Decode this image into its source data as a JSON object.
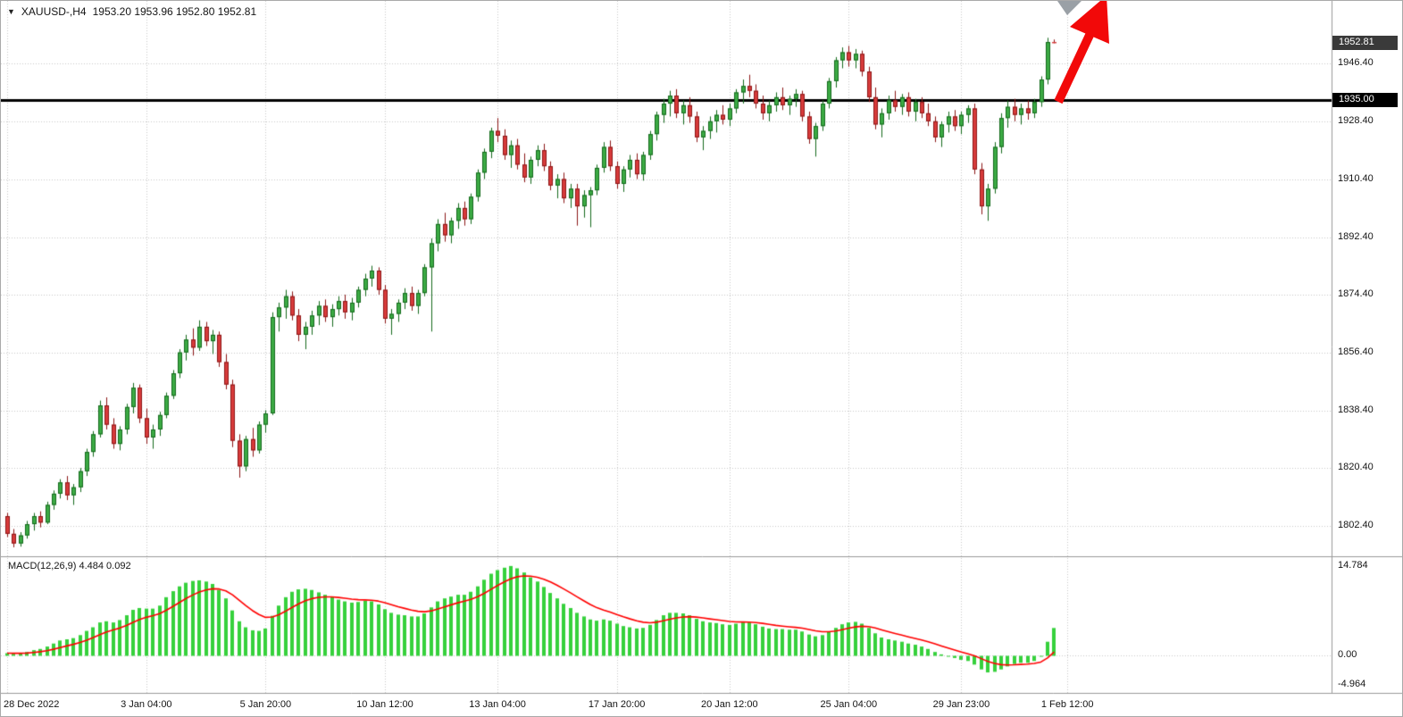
{
  "colors": {
    "background": "#ffffff",
    "grid": "#c8c8c8",
    "separator": "#9a9a9a",
    "axis_text": "#141414",
    "up_fill": "#3cab44",
    "up_stroke": "#156a1d",
    "down_fill": "#d83b3b",
    "down_stroke": "#8c1616",
    "macd_hist": "#36d13c",
    "macd_signal": "#ff0000",
    "hline": "#000000",
    "badge_current_bg": "#3a3a3a",
    "badge_line_bg": "#000000",
    "arrow": "#f20909",
    "marker_gray": "#9aa0a6"
  },
  "header": {
    "dropdown_icon": "▼",
    "symbol": "XAUUSD-,H4",
    "ohlc": "1953.20 1953.96 1952.80 1952.81"
  },
  "price_axis": {
    "current_price": "1952.81",
    "line_price": "1935.00",
    "labels": [
      "1946.40",
      "1928.40",
      "1910.40",
      "1892.40",
      "1874.40",
      "1856.40",
      "1838.40",
      "1820.40",
      "1802.40"
    ]
  },
  "macd": {
    "label": "MACD(12,26,9) 4.484 0.092",
    "axis_labels": [
      "14.784",
      "0.00",
      "-4.964"
    ]
  },
  "chart_data": {
    "type": "candlestick",
    "symbol_timeframe": "XAUUSD- H4",
    "price_range": {
      "top": 1966.0,
      "bottom": 1793.0
    },
    "hline": 1935.0,
    "time_ticks": [
      {
        "index": 0,
        "label": "28 Dec 2022"
      },
      {
        "index": 21,
        "label": "3 Jan 04:00"
      },
      {
        "index": 39,
        "label": "5 Jan 20:00"
      },
      {
        "index": 57,
        "label": "10 Jan 12:00"
      },
      {
        "index": 74,
        "label": "13 Jan 04:00"
      },
      {
        "index": 92,
        "label": "17 Jan 20:00"
      },
      {
        "index": 109,
        "label": "20 Jan 12:00"
      },
      {
        "index": 127,
        "label": "25 Jan 04:00"
      },
      {
        "index": 144,
        "label": "29 Jan 23:00"
      },
      {
        "index": 160,
        "label": "1 Feb 12:00"
      }
    ],
    "candles": [
      [
        1805.5,
        1806.5,
        1799.0,
        1800.0
      ],
      [
        1800.0,
        1801.5,
        1795.8,
        1797.0
      ],
      [
        1797.0,
        1800.5,
        1796.0,
        1799.5
      ],
      [
        1799.5,
        1804.0,
        1798.5,
        1803.0
      ],
      [
        1803.0,
        1806.5,
        1801.0,
        1805.5
      ],
      [
        1805.5,
        1807.0,
        1802.0,
        1803.5
      ],
      [
        1803.5,
        1810.0,
        1803.0,
        1809.0
      ],
      [
        1809.0,
        1813.5,
        1807.5,
        1812.5
      ],
      [
        1812.5,
        1817.0,
        1811.0,
        1816.0
      ],
      [
        1816.0,
        1818.0,
        1810.5,
        1812.0
      ],
      [
        1812.0,
        1815.5,
        1809.0,
        1814.5
      ],
      [
        1814.5,
        1820.5,
        1813.0,
        1819.5
      ],
      [
        1819.5,
        1826.5,
        1818.0,
        1825.5
      ],
      [
        1825.5,
        1832.0,
        1824.0,
        1831.0
      ],
      [
        1831.0,
        1841.5,
        1830.0,
        1840.0
      ],
      [
        1840.0,
        1842.5,
        1832.5,
        1834.0
      ],
      [
        1834.0,
        1836.0,
        1826.5,
        1828.0
      ],
      [
        1828.0,
        1833.5,
        1826.0,
        1832.5
      ],
      [
        1832.5,
        1840.5,
        1831.0,
        1839.5
      ],
      [
        1839.5,
        1847.0,
        1837.5,
        1845.5
      ],
      [
        1845.5,
        1846.5,
        1834.5,
        1836.0
      ],
      [
        1836.0,
        1839.0,
        1828.0,
        1830.0
      ],
      [
        1830.0,
        1834.0,
        1826.5,
        1832.5
      ],
      [
        1832.5,
        1838.0,
        1830.5,
        1837.0
      ],
      [
        1837.0,
        1844.0,
        1836.0,
        1843.0
      ],
      [
        1843.0,
        1851.0,
        1842.0,
        1850.0
      ],
      [
        1850.0,
        1857.5,
        1848.5,
        1856.5
      ],
      [
        1856.5,
        1862.0,
        1854.0,
        1860.5
      ],
      [
        1860.5,
        1864.0,
        1855.5,
        1858.0
      ],
      [
        1858.0,
        1866.5,
        1857.0,
        1864.5
      ],
      [
        1864.5,
        1866.0,
        1858.5,
        1860.0
      ],
      [
        1860.0,
        1863.5,
        1856.0,
        1862.0
      ],
      [
        1862.0,
        1863.0,
        1852.0,
        1853.5
      ],
      [
        1853.5,
        1856.0,
        1845.0,
        1846.5
      ],
      [
        1846.5,
        1848.0,
        1827.0,
        1829.0
      ],
      [
        1829.0,
        1831.0,
        1817.5,
        1821.0
      ],
      [
        1821.0,
        1830.5,
        1819.5,
        1829.5
      ],
      [
        1829.5,
        1833.0,
        1824.0,
        1826.0
      ],
      [
        1826.0,
        1835.0,
        1825.0,
        1834.0
      ],
      [
        1834.0,
        1838.5,
        1831.5,
        1837.5
      ],
      [
        1837.5,
        1869.0,
        1837.0,
        1867.5
      ],
      [
        1867.5,
        1872.0,
        1863.0,
        1870.5
      ],
      [
        1870.5,
        1876.0,
        1867.0,
        1874.0
      ],
      [
        1874.0,
        1875.5,
        1866.5,
        1868.0
      ],
      [
        1868.0,
        1870.0,
        1860.0,
        1862.0
      ],
      [
        1862.0,
        1866.0,
        1857.5,
        1864.5
      ],
      [
        1864.5,
        1869.5,
        1862.0,
        1868.0
      ],
      [
        1868.0,
        1872.5,
        1865.0,
        1871.0
      ],
      [
        1871.0,
        1873.0,
        1866.0,
        1867.5
      ],
      [
        1867.5,
        1871.5,
        1864.5,
        1870.0
      ],
      [
        1870.0,
        1874.0,
        1868.0,
        1872.5
      ],
      [
        1872.5,
        1874.5,
        1867.0,
        1869.0
      ],
      [
        1869.0,
        1873.5,
        1866.5,
        1872.0
      ],
      [
        1872.0,
        1877.0,
        1870.5,
        1876.0
      ],
      [
        1876.0,
        1881.0,
        1874.0,
        1879.5
      ],
      [
        1879.5,
        1883.5,
        1877.0,
        1882.0
      ],
      [
        1882.0,
        1883.0,
        1874.5,
        1876.0
      ],
      [
        1876.0,
        1877.5,
        1865.5,
        1867.0
      ],
      [
        1867.0,
        1870.0,
        1862.0,
        1868.5
      ],
      [
        1868.5,
        1873.0,
        1866.0,
        1872.0
      ],
      [
        1872.0,
        1876.5,
        1870.0,
        1875.0
      ],
      [
        1875.0,
        1877.0,
        1869.5,
        1871.0
      ],
      [
        1871.0,
        1876.0,
        1868.5,
        1875.0
      ],
      [
        1875.0,
        1884.0,
        1874.0,
        1883.0
      ],
      [
        1883.0,
        1892.0,
        1863.0,
        1890.5
      ],
      [
        1890.5,
        1898.0,
        1888.0,
        1896.5
      ],
      [
        1896.5,
        1900.0,
        1891.0,
        1893.0
      ],
      [
        1893.0,
        1898.5,
        1890.5,
        1897.5
      ],
      [
        1897.5,
        1903.0,
        1895.0,
        1901.5
      ],
      [
        1901.5,
        1903.5,
        1896.0,
        1898.0
      ],
      [
        1898.0,
        1906.0,
        1896.5,
        1905.0
      ],
      [
        1905.0,
        1913.5,
        1903.5,
        1912.5
      ],
      [
        1912.5,
        1920.0,
        1910.5,
        1919.0
      ],
      [
        1919.0,
        1926.5,
        1917.0,
        1925.5
      ],
      [
        1925.5,
        1929.5,
        1922.0,
        1924.0
      ],
      [
        1924.0,
        1926.0,
        1916.5,
        1918.0
      ],
      [
        1918.0,
        1922.5,
        1914.0,
        1921.0
      ],
      [
        1921.0,
        1923.0,
        1913.5,
        1915.0
      ],
      [
        1915.0,
        1918.5,
        1909.5,
        1911.0
      ],
      [
        1911.0,
        1917.5,
        1909.0,
        1916.5
      ],
      [
        1916.5,
        1921.0,
        1914.5,
        1919.5
      ],
      [
        1919.5,
        1921.5,
        1913.0,
        1914.5
      ],
      [
        1914.5,
        1916.0,
        1907.0,
        1908.5
      ],
      [
        1908.5,
        1912.0,
        1904.5,
        1910.5
      ],
      [
        1910.5,
        1912.5,
        1903.0,
        1904.5
      ],
      [
        1904.5,
        1909.0,
        1901.5,
        1907.5
      ],
      [
        1907.5,
        1909.0,
        1896.0,
        1902.0
      ],
      [
        1902.0,
        1907.0,
        1898.5,
        1905.5
      ],
      [
        1905.5,
        1908.0,
        1895.5,
        1907.0
      ],
      [
        1907.0,
        1915.0,
        1905.5,
        1914.0
      ],
      [
        1914.0,
        1922.0,
        1912.5,
        1920.5
      ],
      [
        1920.5,
        1922.5,
        1913.0,
        1914.5
      ],
      [
        1914.5,
        1916.0,
        1907.5,
        1909.0
      ],
      [
        1909.0,
        1914.5,
        1906.5,
        1913.5
      ],
      [
        1913.5,
        1918.0,
        1911.0,
        1916.5
      ],
      [
        1916.5,
        1918.5,
        1910.5,
        1912.0
      ],
      [
        1912.0,
        1919.0,
        1910.0,
        1918.0
      ],
      [
        1918.0,
        1925.5,
        1916.5,
        1924.5
      ],
      [
        1924.5,
        1931.5,
        1922.5,
        1930.5
      ],
      [
        1930.5,
        1935.5,
        1928.0,
        1934.0
      ],
      [
        1934.0,
        1938.0,
        1930.0,
        1936.5
      ],
      [
        1936.5,
        1938.5,
        1929.5,
        1931.0
      ],
      [
        1931.0,
        1935.0,
        1927.5,
        1933.5
      ],
      [
        1933.5,
        1936.0,
        1928.0,
        1930.0
      ],
      [
        1930.0,
        1931.5,
        1922.0,
        1923.5
      ],
      [
        1923.5,
        1927.0,
        1919.5,
        1925.5
      ],
      [
        1925.5,
        1930.0,
        1923.0,
        1928.5
      ],
      [
        1928.5,
        1932.0,
        1925.0,
        1930.5
      ],
      [
        1930.5,
        1933.5,
        1927.5,
        1929.0
      ],
      [
        1929.0,
        1934.0,
        1927.0,
        1932.5
      ],
      [
        1932.5,
        1938.5,
        1931.0,
        1937.5
      ],
      [
        1937.5,
        1941.5,
        1934.0,
        1939.5
      ],
      [
        1939.5,
        1943.0,
        1936.0,
        1938.0
      ],
      [
        1938.0,
        1940.0,
        1932.5,
        1934.0
      ],
      [
        1934.0,
        1936.5,
        1929.0,
        1931.0
      ],
      [
        1931.0,
        1935.0,
        1928.5,
        1933.5
      ],
      [
        1933.5,
        1937.5,
        1931.5,
        1936.0
      ],
      [
        1936.0,
        1939.0,
        1932.0,
        1933.5
      ],
      [
        1933.5,
        1936.5,
        1930.5,
        1935.5
      ],
      [
        1935.5,
        1938.5,
        1933.0,
        1937.0
      ],
      [
        1937.0,
        1938.0,
        1928.5,
        1930.0
      ],
      [
        1930.0,
        1931.5,
        1921.5,
        1923.0
      ],
      [
        1923.0,
        1928.0,
        1917.5,
        1927.0
      ],
      [
        1927.0,
        1935.0,
        1925.5,
        1934.0
      ],
      [
        1934.0,
        1942.0,
        1932.5,
        1941.0
      ],
      [
        1941.0,
        1948.5,
        1939.0,
        1947.5
      ],
      [
        1947.5,
        1951.5,
        1945.0,
        1950.0
      ],
      [
        1950.0,
        1952.0,
        1945.5,
        1947.5
      ],
      [
        1947.5,
        1951.0,
        1945.0,
        1949.5
      ],
      [
        1949.5,
        1950.5,
        1942.5,
        1944.0
      ],
      [
        1944.0,
        1945.5,
        1934.5,
        1936.0
      ],
      [
        1936.0,
        1939.0,
        1926.0,
        1927.5
      ],
      [
        1927.5,
        1932.5,
        1923.5,
        1931.0
      ],
      [
        1931.0,
        1936.5,
        1929.0,
        1935.0
      ],
      [
        1935.0,
        1938.0,
        1931.5,
        1933.0
      ],
      [
        1933.0,
        1937.0,
        1930.5,
        1936.0
      ],
      [
        1936.0,
        1937.5,
        1930.0,
        1931.5
      ],
      [
        1931.5,
        1935.5,
        1928.5,
        1934.5
      ],
      [
        1934.5,
        1936.0,
        1929.5,
        1931.0
      ],
      [
        1931.0,
        1934.0,
        1927.0,
        1928.5
      ],
      [
        1928.5,
        1930.0,
        1922.0,
        1923.5
      ],
      [
        1923.5,
        1928.5,
        1920.5,
        1927.5
      ],
      [
        1927.5,
        1931.5,
        1925.0,
        1930.0
      ],
      [
        1930.0,
        1932.0,
        1925.5,
        1927.0
      ],
      [
        1927.0,
        1931.5,
        1924.5,
        1930.5
      ],
      [
        1930.5,
        1933.5,
        1928.0,
        1932.5
      ],
      [
        1932.5,
        1934.0,
        1912.0,
        1913.5
      ],
      [
        1913.5,
        1915.5,
        1899.5,
        1902.0
      ],
      [
        1902.0,
        1909.0,
        1897.5,
        1907.5
      ],
      [
        1907.5,
        1922.0,
        1906.0,
        1920.5
      ],
      [
        1920.5,
        1931.0,
        1918.5,
        1929.5
      ],
      [
        1929.5,
        1935.0,
        1926.5,
        1933.0
      ],
      [
        1933.0,
        1935.5,
        1928.5,
        1930.5
      ],
      [
        1930.5,
        1934.0,
        1927.5,
        1932.5
      ],
      [
        1932.5,
        1935.0,
        1929.0,
        1931.0
      ],
      [
        1931.0,
        1935.5,
        1929.5,
        1934.5
      ],
      [
        1934.5,
        1942.5,
        1933.0,
        1941.5
      ],
      [
        1941.5,
        1954.5,
        1940.0,
        1953.2
      ],
      [
        1953.2,
        1953.96,
        1952.8,
        1952.81
      ]
    ],
    "indicator": {
      "name": "MACD(12,26,9)",
      "current_values": "4.484 0.092",
      "signal_ema_period": 9,
      "range": {
        "top": 16.4,
        "bottom": -6.3
      },
      "axis_labels": [
        "14.784",
        "0.00",
        "-4.964"
      ],
      "histogram": [
        0.3,
        0.2,
        0.3,
        0.5,
        0.8,
        1.0,
        1.4,
        1.9,
        2.4,
        2.6,
        2.8,
        3.3,
        4.0,
        4.6,
        5.4,
        5.6,
        5.4,
        5.8,
        6.6,
        7.5,
        7.8,
        7.7,
        7.7,
        8.2,
        9.6,
        10.6,
        11.4,
        12.0,
        12.3,
        12.4,
        12.2,
        11.8,
        10.8,
        9.4,
        7.4,
        5.6,
        4.6,
        4.1,
        4.0,
        4.4,
        6.5,
        8.2,
        9.6,
        10.5,
        10.9,
        11.0,
        10.8,
        10.4,
        10.0,
        9.6,
        9.2,
        8.9,
        8.7,
        8.8,
        9.0,
        8.9,
        8.4,
        7.6,
        7.0,
        6.7,
        6.6,
        6.4,
        6.4,
        6.9,
        7.9,
        8.9,
        9.4,
        9.7,
        10.0,
        10.0,
        10.5,
        11.4,
        12.5,
        13.5,
        14.1,
        14.5,
        14.784,
        14.4,
        13.7,
        12.9,
        12.2,
        11.3,
        10.3,
        9.4,
        8.5,
        7.8,
        7.0,
        6.4,
        5.9,
        5.7,
        5.9,
        5.7,
        5.2,
        4.8,
        4.6,
        4.4,
        4.5,
        5.0,
        5.8,
        6.6,
        7.0,
        7.0,
        6.9,
        6.6,
        6.0,
        5.6,
        5.4,
        5.3,
        5.1,
        5.0,
        5.2,
        5.4,
        5.4,
        5.1,
        4.7,
        4.4,
        4.3,
        4.3,
        4.2,
        4.2,
        3.9,
        3.4,
        3.1,
        3.3,
        3.8,
        4.5,
        5.1,
        5.4,
        5.5,
        5.2,
        4.5,
        3.6,
        2.9,
        2.6,
        2.4,
        2.2,
        1.9,
        1.7,
        1.4,
        1.0,
        0.5,
        0.1,
        -0.2,
        -0.5,
        -0.8,
        -1.0,
        -1.6,
        -2.4,
        -2.9,
        -2.8,
        -2.4,
        -1.9,
        -1.5,
        -1.3,
        -1.3,
        -1.0,
        -0.2,
        2.2,
        4.484
      ]
    }
  }
}
